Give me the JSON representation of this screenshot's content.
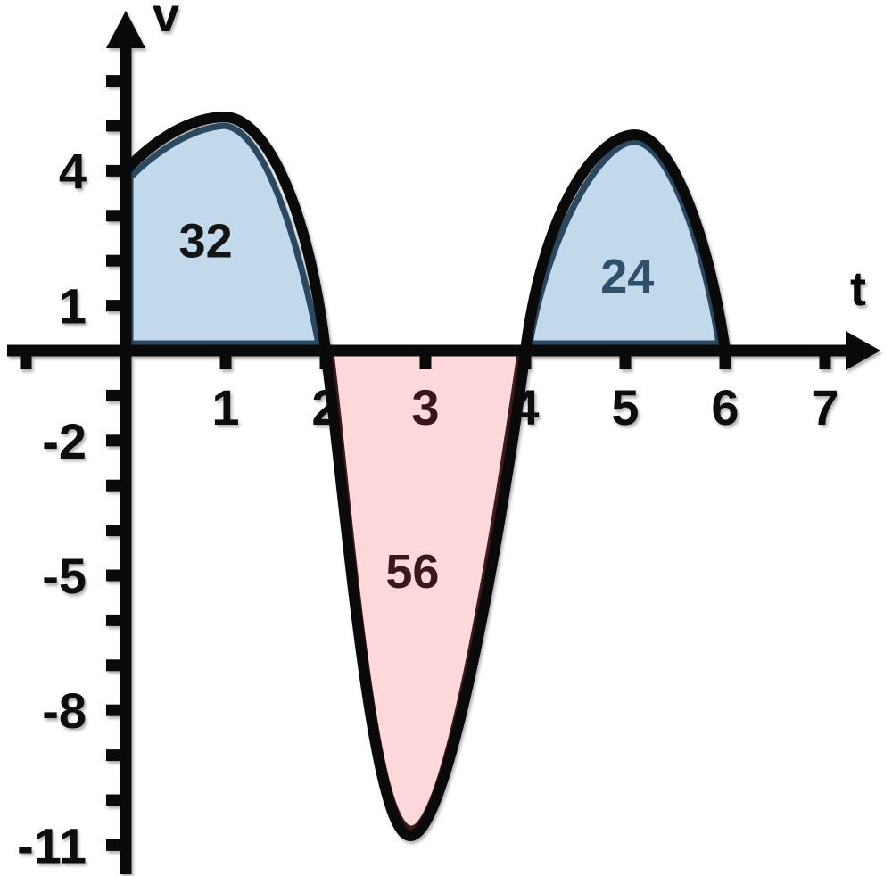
{
  "chart_data": {
    "type": "area",
    "title": "",
    "xlabel": "t",
    "ylabel": "v",
    "axis_color": "#0a0a0a",
    "grid": false,
    "xlim": [
      -1.2,
      7.5
    ],
    "ylim": [
      -11.7,
      7.7
    ],
    "x_tick_marks": [
      -1,
      1,
      2,
      3,
      4,
      5,
      6,
      7
    ],
    "y_tick_marks": [
      6,
      5,
      4,
      3,
      2,
      1,
      -1,
      -2,
      -3,
      -4,
      -5,
      -6,
      -7,
      -8,
      -9,
      -10,
      -11
    ],
    "x_tick_labels": [
      {
        "t": 1,
        "text": "1",
        "color": "#0d0d0d"
      },
      {
        "t": 2,
        "text": "2",
        "color": "#0d0d0d"
      },
      {
        "t": 3,
        "text": "3",
        "color": "#3a1416"
      },
      {
        "t": 4,
        "text": "4",
        "color": "#0d0d0d"
      },
      {
        "t": 5,
        "text": "5",
        "color": "#0d0d0d"
      },
      {
        "t": 6,
        "text": "6",
        "color": "#0d0d0d"
      },
      {
        "t": 7,
        "text": "7",
        "color": "#0d0d0d"
      }
    ],
    "y_tick_labels": [
      {
        "v": 4,
        "text": "4",
        "color": "#0d0d0d"
      },
      {
        "v": 1,
        "text": "1",
        "color": "#0d0d0d"
      },
      {
        "v": -2,
        "text": "-2",
        "color": "#0d0d0d"
      },
      {
        "v": -5,
        "text": "-5",
        "color": "#0d0d0d"
      },
      {
        "v": -8,
        "text": "-8",
        "color": "#0d0d0d"
      },
      {
        "v": -11,
        "text": "-11",
        "color": "#0d0d0d"
      }
    ],
    "curve": {
      "name": "v(t)",
      "color": "#0a0a0a",
      "points": [
        {
          "t": 0,
          "v": 4
        },
        {
          "t": 1,
          "v": 5.2
        },
        {
          "t": 2,
          "v": 0
        },
        {
          "t": 2.85,
          "v": -10.8
        },
        {
          "t": 4,
          "v": 0
        },
        {
          "t": 5.1,
          "v": 4.8
        },
        {
          "t": 6,
          "v": 0
        }
      ]
    },
    "regions": [
      {
        "area_label": "32",
        "value": 32,
        "t_range": [
          0,
          2
        ],
        "position": "above-axis",
        "fill": "#C2D8EB",
        "edge": "#2A4860",
        "label_color": "#141414",
        "label_pos": {
          "t": 0.8,
          "v": 2.45
        }
      },
      {
        "area_label": "56",
        "value": 56,
        "t_range": [
          2,
          4
        ],
        "position": "below-axis",
        "fill": "#FDD8DA",
        "edge": "#3E1B1A",
        "label_color": "#3A171A",
        "label_pos": {
          "t": 2.87,
          "v": -4.9
        }
      },
      {
        "area_label": "24",
        "value": 24,
        "t_range": [
          4,
          6
        ],
        "position": "above-axis",
        "fill": "#C2D8EB",
        "edge": "#2A4860",
        "label_color": "#30506A",
        "label_pos": {
          "t": 5.02,
          "v": 1.67
        }
      }
    ]
  }
}
